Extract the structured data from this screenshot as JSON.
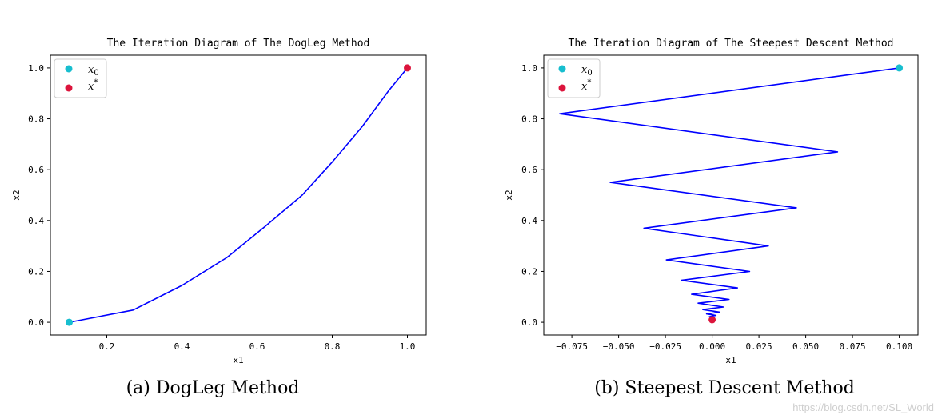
{
  "colors": {
    "start": "#17becf",
    "end": "#dc143c",
    "path": "#0000ff"
  },
  "chart_data": [
    {
      "type": "line",
      "title": "The Iteration Diagram of The DogLeg Method",
      "xlabel": "x1",
      "ylabel": "x2",
      "xlim": [
        0.05,
        1.05
      ],
      "ylim": [
        -0.05,
        1.05
      ],
      "xticks": [
        0.2,
        0.4,
        0.6,
        0.8,
        1.0
      ],
      "xtick_labels": [
        "0.2",
        "0.4",
        "0.6",
        "0.8",
        "1.0"
      ],
      "yticks": [
        0.0,
        0.2,
        0.4,
        0.6,
        0.8,
        1.0
      ],
      "ytick_labels": [
        "0.0",
        "0.2",
        "0.4",
        "0.6",
        "0.8",
        "1.0"
      ],
      "legend": {
        "position": "upper-left",
        "entries": [
          "x_0",
          "x^*"
        ]
      },
      "series": [
        {
          "values_x": [
            0.1,
            0.27,
            0.4,
            0.52,
            0.62,
            0.72,
            0.8,
            0.88,
            0.95,
            1.0
          ],
          "values_y": [
            0.0,
            0.048,
            0.145,
            0.255,
            0.375,
            0.5,
            0.63,
            0.77,
            0.91,
            1.0
          ]
        }
      ],
      "markers": [
        {
          "label": "x_0",
          "x": 0.1,
          "y": 0.0
        },
        {
          "label": "x^*",
          "x": 1.0,
          "y": 1.0
        }
      ],
      "caption": "(a)  DogLeg Method"
    },
    {
      "type": "line",
      "title": "The Iteration Diagram of The Steepest Descent Method",
      "xlabel": "x1",
      "ylabel": "x2",
      "xlim": [
        -0.09,
        0.11
      ],
      "ylim": [
        -0.05,
        1.05
      ],
      "xticks": [
        -0.075,
        -0.05,
        -0.025,
        0.0,
        0.025,
        0.05,
        0.075,
        0.1
      ],
      "xtick_labels": [
        "−0.075",
        "−0.050",
        "−0.025",
        "0.000",
        "0.025",
        "0.050",
        "0.075",
        "0.100"
      ],
      "yticks": [
        0.0,
        0.2,
        0.4,
        0.6,
        0.8,
        1.0
      ],
      "ytick_labels": [
        "0.0",
        "0.2",
        "0.4",
        "0.6",
        "0.8",
        "1.0"
      ],
      "legend": {
        "position": "upper-left",
        "entries": [
          "x_0",
          "x^*"
        ]
      },
      "series": [
        {
          "values_x": [
            0.1,
            -0.0815,
            0.067,
            -0.0545,
            0.045,
            -0.0365,
            0.03,
            -0.0245,
            0.02,
            -0.0165,
            0.0135,
            -0.011,
            0.009,
            -0.0075,
            0.006,
            -0.005,
            0.004,
            -0.003,
            0.002,
            -0.0015,
            0.001,
            0.0
          ],
          "values_y": [
            1.0,
            0.82,
            0.67,
            0.55,
            0.45,
            0.37,
            0.3,
            0.245,
            0.2,
            0.165,
            0.135,
            0.11,
            0.09,
            0.075,
            0.06,
            0.05,
            0.04,
            0.033,
            0.027,
            0.022,
            0.018,
            0.01
          ]
        }
      ],
      "markers": [
        {
          "label": "x_0",
          "x": 0.1,
          "y": 1.0
        },
        {
          "label": "x^*",
          "x": 0.0,
          "y": 0.01
        }
      ],
      "caption": "(b)  Steepest Descent Method"
    }
  ],
  "watermark": "https://blog.csdn.net/SL_World"
}
